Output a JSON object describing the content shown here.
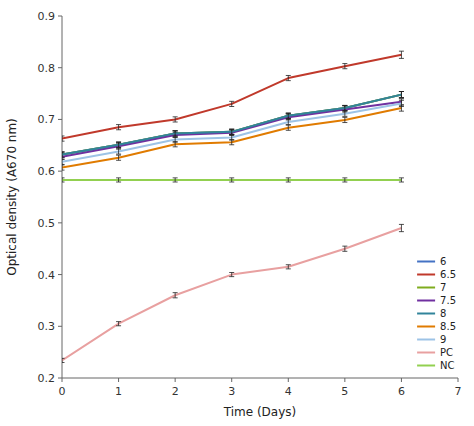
{
  "chart_data": {
    "type": "line",
    "xlabel": "Time (Days)",
    "ylabel": "Optical density (A670 nm)",
    "x": [
      0,
      1,
      2,
      3,
      4,
      5,
      6
    ],
    "series": [
      {
        "name": "6",
        "color": "#4472c4",
        "values": [
          0.632,
          0.651,
          0.673,
          0.676,
          0.707,
          0.722,
          0.748
        ],
        "errors": [
          0.005,
          0.005,
          0.005,
          0.005,
          0.005,
          0.005,
          0.006
        ]
      },
      {
        "name": "6.5",
        "color": "#c0392b",
        "values": [
          0.663,
          0.685,
          0.7,
          0.73,
          0.78,
          0.803,
          0.825
        ],
        "errors": [
          0.005,
          0.005,
          0.005,
          0.005,
          0.005,
          0.005,
          0.007
        ]
      },
      {
        "name": "7",
        "color": "#7fac1e",
        "values": [
          0.632,
          0.651,
          0.673,
          0.676,
          0.707,
          0.722,
          0.748
        ],
        "errors": [
          0.005,
          0.005,
          0.005,
          0.005,
          0.005,
          0.005,
          0.006
        ]
      },
      {
        "name": "7.5",
        "color": "#7030a0",
        "values": [
          0.628,
          0.648,
          0.67,
          0.674,
          0.704,
          0.719,
          0.734
        ],
        "errors": [
          0.005,
          0.005,
          0.005,
          0.005,
          0.005,
          0.005,
          0.006
        ]
      },
      {
        "name": "8",
        "color": "#31849b",
        "values": [
          0.632,
          0.651,
          0.673,
          0.676,
          0.707,
          0.722,
          0.748
        ],
        "errors": [
          0.005,
          0.005,
          0.005,
          0.005,
          0.005,
          0.005,
          0.006
        ]
      },
      {
        "name": "8.5",
        "color": "#e07b00",
        "values": [
          0.607,
          0.626,
          0.652,
          0.656,
          0.684,
          0.699,
          0.722
        ],
        "errors": [
          0.005,
          0.005,
          0.005,
          0.005,
          0.005,
          0.005,
          0.006
        ]
      },
      {
        "name": "9",
        "color": "#9dc3e6",
        "values": [
          0.618,
          0.638,
          0.661,
          0.665,
          0.695,
          0.711,
          0.731
        ],
        "errors": [
          0.005,
          0.005,
          0.005,
          0.005,
          0.005,
          0.005,
          0.006
        ]
      },
      {
        "name": "PC",
        "color": "#e8a0a0",
        "values": [
          0.234,
          0.305,
          0.36,
          0.4,
          0.415,
          0.45,
          0.49
        ],
        "errors": [
          0.004,
          0.004,
          0.005,
          0.004,
          0.004,
          0.005,
          0.007
        ]
      },
      {
        "name": "NC",
        "color": "#92d050",
        "values": [
          0.583,
          0.583,
          0.583,
          0.583,
          0.583,
          0.583,
          0.583
        ],
        "errors": [
          0.004,
          0.004,
          0.004,
          0.004,
          0.004,
          0.004,
          0.004
        ]
      }
    ],
    "xlim": [
      0,
      7
    ],
    "ylim": [
      0.2,
      0.9
    ],
    "xticks": [
      0,
      1,
      2,
      3,
      4,
      5,
      6,
      7
    ],
    "yticks": [
      0.2,
      0.3,
      0.4,
      0.5,
      0.6,
      0.7,
      0.8,
      0.9
    ],
    "grid": false,
    "legend": "lower right"
  }
}
